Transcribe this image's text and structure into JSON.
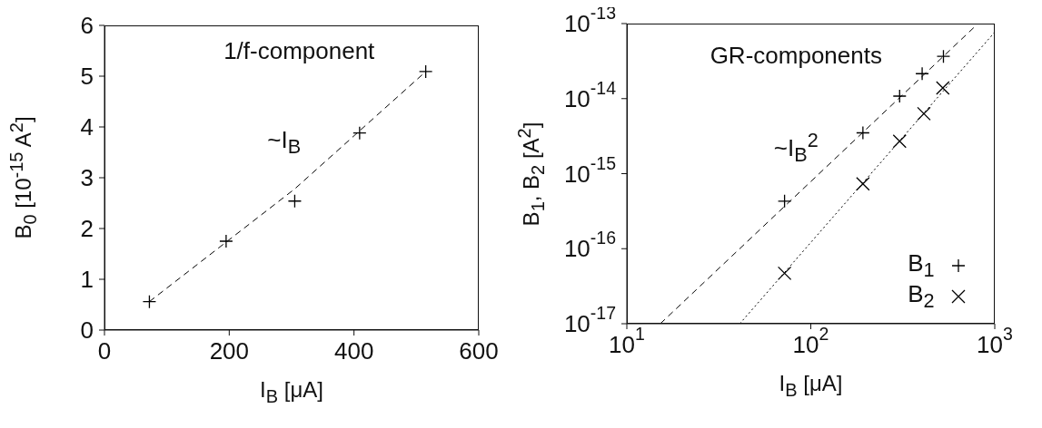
{
  "chart_data": [
    {
      "type": "scatter",
      "xlabel": "I$_{B}$ [μA]",
      "ylabel": "B$_{0}$ [10$^{-15}$ A$^{2}$]",
      "annotations": [
        "1/f-component",
        "~I$_{B}$"
      ],
      "xlim": [
        0,
        600
      ],
      "xticks": [
        0,
        200,
        400,
        600
      ],
      "ylim": [
        0,
        6
      ],
      "yticks": [
        0,
        1,
        2,
        3,
        4,
        5,
        6
      ],
      "series": [
        {
          "color": "#000000",
          "marker": "cross",
          "x": [
            72,
            195,
            305,
            409,
            515
          ],
          "values": [
            0.56,
            1.75,
            2.54,
            3.88,
            5.09
          ]
        },
        {
          "type": "line",
          "line_style": "dashed",
          "marker": "none",
          "color": "#000000",
          "x": [
            72,
            305,
            515
          ],
          "values": [
            0.56,
            2.78,
            5.09
          ]
        }
      ]
    },
    {
      "type": "scatter",
      "xlabel": "I$_{B}$ [μA]",
      "ylabel": "B$_{1}$, B$_{2}$ [A$^{2}$]",
      "annotations": [
        "GR-components",
        "~I$_{B}$$^{2}$"
      ],
      "log": "xy",
      "legend": "bottom right",
      "xlim": [
        10,
        1000
      ],
      "xticks": [
        {
          "value": 10,
          "label": "10$^{1}$"
        },
        {
          "value": 100,
          "label": "10$^{2}$"
        },
        {
          "value": 1000,
          "label": "10$^{3}$"
        }
      ],
      "ylim": [
        1e-17,
        1e-13
      ],
      "yticks": [
        {
          "value": 1e-17,
          "label": "10$^{-17}$"
        },
        {
          "value": 1e-16,
          "label": "10$^{-16}$"
        },
        {
          "value": 1e-15,
          "label": "10$^{-15}$"
        },
        {
          "value": 1e-14,
          "label": "10$^{-14}$"
        },
        {
          "value": 1e-13,
          "label": "10$^{-13}$"
        }
      ],
      "series": [
        {
          "name": "B$_{1}$",
          "color": "#000000",
          "marker": "cross",
          "x": [
            72,
            192,
            304,
            403,
            526
          ],
          "values": [
            4.3e-16,
            3.5e-15,
            1.08e-14,
            2.15e-14,
            3.65e-14
          ]
        },
        {
          "name": "B$_{2}$",
          "color": "#000000",
          "marker": "x",
          "x": [
            72,
            192,
            304,
            412,
            522
          ],
          "values": [
            4.7e-17,
            7.3e-16,
            2.7e-15,
            6.3e-15,
            1.39e-14
          ]
        },
        {
          "type": "line",
          "line_style": "dashed",
          "marker": "none",
          "color": "#000000",
          "x": [
            15.2,
            790
          ],
          "values": [
            1e-17,
            9.4e-14
          ]
        },
        {
          "type": "line",
          "line_style": "dotted",
          "marker": "none",
          "color": "#000000",
          "x": [
            41.1,
            1000
          ],
          "values": [
            1e-17,
            7.7e-14
          ]
        }
      ]
    }
  ]
}
